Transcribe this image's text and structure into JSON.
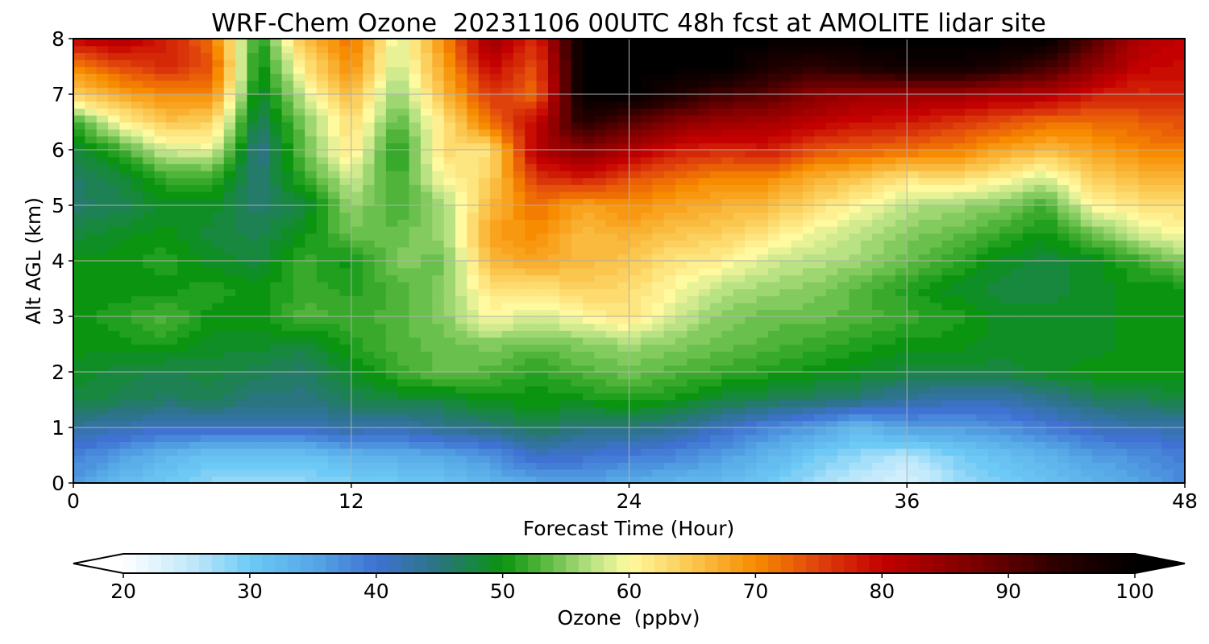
{
  "chart_data": {
    "type": "heatmap",
    "title": "WRF-Chem Ozone  20231106 00UTC 48h fcst at AMOLITE lidar site",
    "xlabel": "Forecast Time (Hour)",
    "ylabel": "Alt AGL (km)",
    "xlim": [
      0,
      48
    ],
    "ylim": [
      0,
      8
    ],
    "xticks": [
      0,
      12,
      24,
      36,
      48
    ],
    "yticks": [
      0,
      1,
      2,
      3,
      4,
      5,
      6,
      7,
      8
    ],
    "grid": true,
    "x": [
      0,
      2,
      4,
      6,
      8,
      10,
      12,
      14,
      16,
      18,
      20,
      22,
      24,
      26,
      28,
      30,
      32,
      34,
      36,
      38,
      40,
      42,
      44,
      46,
      48
    ],
    "y": [
      0.0,
      0.5,
      1.0,
      1.5,
      2.0,
      2.5,
      3.0,
      3.5,
      4.0,
      4.5,
      5.0,
      5.5,
      6.0,
      6.5,
      7.0,
      7.5,
      8.0
    ],
    "z": [
      [
        36,
        32,
        30,
        28,
        28,
        28,
        29,
        30,
        31,
        33,
        35,
        36,
        34,
        33,
        32,
        30,
        27,
        25,
        23,
        27,
        29,
        31,
        33,
        35,
        38
      ],
      [
        39,
        36,
        33,
        31,
        31,
        31,
        33,
        34,
        35,
        37,
        41,
        40,
        39,
        38,
        36,
        33,
        30,
        28,
        26,
        29,
        31,
        33,
        36,
        37,
        39
      ],
      [
        43,
        42,
        41,
        41,
        41,
        41,
        43,
        42,
        44,
        45,
        47,
        45,
        45,
        44,
        41,
        38,
        36,
        32,
        36,
        36,
        37,
        39,
        41,
        42,
        42
      ],
      [
        48,
        47,
        46,
        47,
        45,
        45,
        47,
        48,
        48,
        50,
        50,
        50,
        51,
        50,
        48,
        47,
        46,
        45,
        43,
        42,
        42,
        44,
        46,
        47,
        48
      ],
      [
        49,
        48,
        47,
        48,
        47,
        46,
        49,
        52,
        54,
        53,
        51,
        53,
        54,
        53,
        52,
        51,
        50,
        49,
        48,
        48,
        48,
        49,
        50,
        50,
        50
      ],
      [
        50,
        50,
        51,
        49,
        49,
        48,
        51,
        53,
        54,
        55,
        54,
        55,
        56,
        55,
        54,
        53,
        52,
        51,
        50,
        50,
        49,
        49,
        49,
        50,
        50
      ],
      [
        50,
        51,
        53,
        50,
        50,
        53,
        52,
        53,
        55,
        60,
        58,
        60,
        62,
        58,
        55,
        54,
        54,
        53,
        52,
        51,
        49,
        49,
        49,
        50,
        50
      ],
      [
        50,
        50,
        50,
        51,
        50,
        52,
        51,
        53,
        55,
        62,
        62,
        64,
        63,
        60,
        57,
        56,
        55,
        53,
        51,
        49,
        48,
        48,
        49,
        50,
        50
      ],
      [
        50,
        50,
        51,
        49,
        48,
        52,
        50,
        55,
        54,
        66,
        68,
        66,
        65,
        62,
        61,
        58,
        57,
        56,
        54,
        52,
        49,
        48,
        49,
        52,
        55
      ],
      [
        48,
        49,
        50,
        48,
        47,
        50,
        54,
        54,
        56,
        68,
        70,
        66,
        67,
        65,
        64,
        62,
        59,
        57,
        55,
        54,
        52,
        50,
        54,
        58,
        60
      ],
      [
        46,
        47,
        49,
        49,
        46,
        48,
        56,
        52,
        56,
        66,
        72,
        68,
        70,
        68,
        67,
        66,
        63,
        60,
        57,
        56,
        55,
        52,
        60,
        62,
        63
      ],
      [
        46,
        48,
        52,
        52,
        45,
        52,
        58,
        52,
        60,
        64,
        76,
        78,
        74,
        72,
        70,
        70,
        67,
        65,
        62,
        63,
        61,
        58,
        64,
        66,
        67
      ],
      [
        48,
        52,
        58,
        59,
        44,
        54,
        62,
        50,
        63,
        62,
        82,
        86,
        82,
        78,
        77,
        78,
        74,
        73,
        72,
        71,
        68,
        66,
        68,
        70,
        71
      ],
      [
        52,
        60,
        65,
        64,
        46,
        55,
        63,
        53,
        62,
        72,
        80,
        95,
        90,
        86,
        84,
        83,
        81,
        79,
        78,
        76,
        74,
        72,
        72,
        73,
        74
      ],
      [
        64,
        68,
        70,
        70,
        48,
        58,
        66,
        55,
        66,
        76,
        72,
        100,
        100,
        96,
        92,
        90,
        86,
        84,
        84,
        84,
        82,
        82,
        78,
        77,
        78
      ],
      [
        70,
        74,
        77,
        74,
        49,
        62,
        70,
        57,
        68,
        80,
        74,
        100,
        100,
        100,
        100,
        96,
        94,
        96,
        98,
        98,
        96,
        92,
        86,
        80,
        79
      ],
      [
        80,
        82,
        78,
        72,
        50,
        66,
        72,
        58,
        70,
        84,
        76,
        100,
        100,
        100,
        100,
        100,
        100,
        100,
        100,
        100,
        100,
        100,
        90,
        82,
        80
      ]
    ],
    "colorbar": {
      "label": "Ozone  (ppbv)",
      "min": 20,
      "max": 100,
      "ticks": [
        20,
        30,
        40,
        50,
        60,
        70,
        80,
        90,
        100
      ],
      "extend": "both",
      "colors": [
        {
          "v": 20,
          "c": "#ffffff"
        },
        {
          "v": 26,
          "c": "#b8e6fa"
        },
        {
          "v": 30,
          "c": "#6dc9f5"
        },
        {
          "v": 35,
          "c": "#56a8e6"
        },
        {
          "v": 40,
          "c": "#3f72d2"
        },
        {
          "v": 45,
          "c": "#2a7580"
        },
        {
          "v": 50,
          "c": "#0a9410"
        },
        {
          "v": 53,
          "c": "#50b43a"
        },
        {
          "v": 57,
          "c": "#b8e284"
        },
        {
          "v": 60,
          "c": "#fffaa0"
        },
        {
          "v": 65,
          "c": "#fbc64e"
        },
        {
          "v": 70,
          "c": "#f78c00"
        },
        {
          "v": 75,
          "c": "#e0420c"
        },
        {
          "v": 80,
          "c": "#c40000"
        },
        {
          "v": 87,
          "c": "#7e0000"
        },
        {
          "v": 94,
          "c": "#2a0000"
        },
        {
          "v": 100,
          "c": "#000000"
        }
      ]
    }
  }
}
